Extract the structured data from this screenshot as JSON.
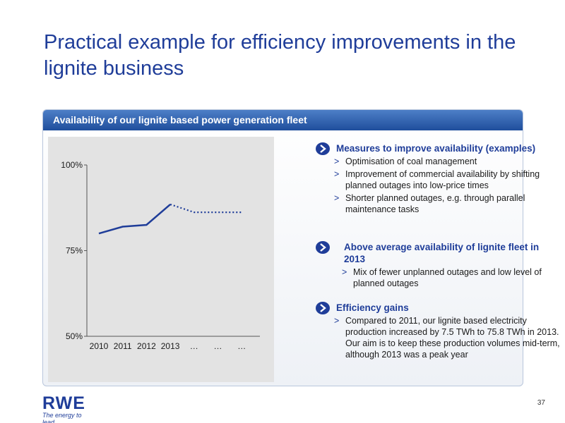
{
  "title": "Practical example for efficiency improvements in the lignite business",
  "panel": {
    "header": "Availability of our lignite based power generation fleet"
  },
  "chart_data": {
    "type": "line",
    "categories": [
      "2010",
      "2011",
      "2012",
      "2013",
      "…",
      "…",
      "…"
    ],
    "ytick_labels": [
      "100%",
      "75%",
      "50%"
    ],
    "ylim": [
      50,
      100
    ],
    "series": [
      {
        "style": "solid",
        "color": "#1f3d99",
        "points": [
          [
            0,
            80
          ],
          [
            1,
            82
          ],
          [
            2,
            82.5
          ],
          [
            3,
            88.5
          ]
        ]
      },
      {
        "style": "dotted",
        "color": "#1f3d99",
        "points": [
          [
            3,
            88.5
          ],
          [
            4,
            86.2
          ],
          [
            5,
            86.2
          ],
          [
            6,
            86.2
          ]
        ]
      }
    ],
    "grid": false
  },
  "sections": [
    {
      "title": "Measures to improve  availability (examples)",
      "icon": "chevron-right-circle-icon",
      "items": [
        "Optimisation of coal management",
        "Improvement of commercial availability by shifting planned outages into low-price times",
        "Shorter planned outages, e.g. through parallel maintenance tasks"
      ]
    },
    {
      "title": "Above average availability of lignite fleet in 2013",
      "icon": "chevron-right-circle-icon",
      "items": [
        "Mix of fewer unplanned outages and low level of planned outages"
      ]
    },
    {
      "title": "Efficiency gains",
      "icon": "chevron-right-circle-icon",
      "items": [
        "Compared to 2011, our lignite based electricity production increased by 7.5 TWh to 75.8 TWh in 2013. Our aim is to keep these production volumes mid-term, although 2013 was a peak year"
      ]
    }
  ],
  "footer": {
    "logo": "RWE",
    "tagline": "The energy to lead",
    "page": "37"
  }
}
